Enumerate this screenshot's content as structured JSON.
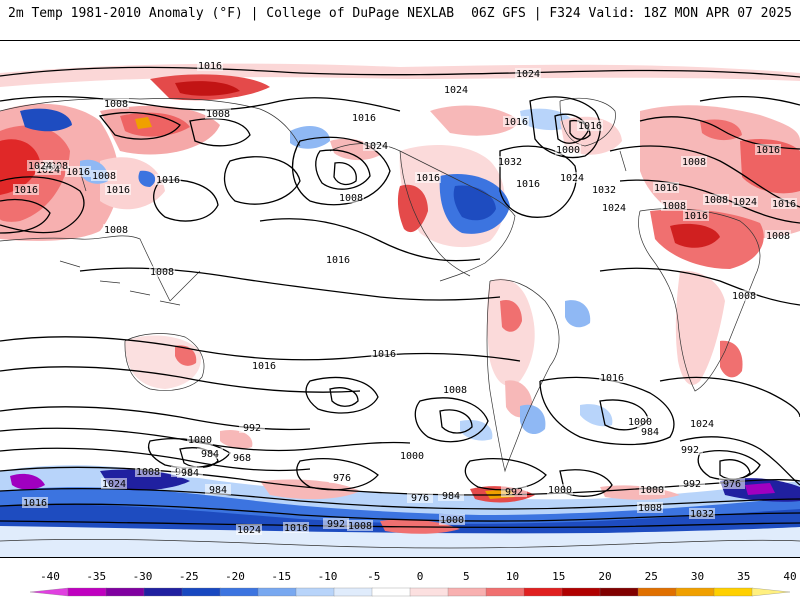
{
  "header": {
    "title_left": "2m Temp 1981-2010 Anomaly (°F) | College of DuPage NEXLAB",
    "title_right": "06Z GFS | F324 Valid: 18Z MON APR 07 2025"
  },
  "colorbar": {
    "tick_labels": [
      "-40",
      "-35",
      "-30",
      "-25",
      "-20",
      "-15",
      "-10",
      "-5",
      "0",
      "5",
      "10",
      "15",
      "20",
      "25",
      "30",
      "35",
      "40"
    ],
    "colors": [
      "#e040e0",
      "#c000c0",
      "#8000a0",
      "#2020a0",
      "#1848c0",
      "#3c74e0",
      "#78a8f0",
      "#b8d4fa",
      "#e0ecfc",
      "#ffffff",
      "#fce0e0",
      "#f8b0b0",
      "#f07070",
      "#e02020",
      "#b00000",
      "#800000",
      "#e07000",
      "#f0a000",
      "#ffd000",
      "#fff080"
    ]
  },
  "map": {
    "isobar_labels": [
      {
        "id": "p1",
        "text": "1016"
      },
      {
        "id": "p2",
        "text": "1024"
      },
      {
        "id": "p3",
        "text": "1008"
      },
      {
        "id": "p4",
        "text": "1008"
      },
      {
        "id": "p5",
        "text": "1024"
      },
      {
        "id": "p6",
        "text": "1016"
      },
      {
        "id": "p7",
        "text": "1024"
      },
      {
        "id": "p8",
        "text": "1016"
      },
      {
        "id": "p9",
        "text": "1016"
      },
      {
        "id": "p10",
        "text": "1000"
      },
      {
        "id": "p11",
        "text": "1032"
      },
      {
        "id": "p12",
        "text": "1024"
      },
      {
        "id": "p13",
        "text": "1032"
      },
      {
        "id": "p14",
        "text": "1016"
      },
      {
        "id": "p15",
        "text": "1016"
      },
      {
        "id": "p16",
        "text": "1024"
      },
      {
        "id": "p17",
        "text": "1016"
      },
      {
        "id": "p18",
        "text": "1008"
      },
      {
        "id": "p19",
        "text": "1016"
      },
      {
        "id": "p20",
        "text": "1008"
      },
      {
        "id": "p21",
        "text": "1016"
      },
      {
        "id": "p22",
        "text": "1008"
      },
      {
        "id": "p23",
        "text": "1024"
      },
      {
        "id": "p24",
        "text": "1016"
      },
      {
        "id": "p25",
        "text": "1008"
      },
      {
        "id": "p26",
        "text": "1016"
      },
      {
        "id": "p27",
        "text": "1016"
      },
      {
        "id": "p28",
        "text": "1008"
      },
      {
        "id": "p29",
        "text": "1008"
      },
      {
        "id": "p30",
        "text": "1016"
      },
      {
        "id": "p31",
        "text": "1008"
      },
      {
        "id": "p32",
        "text": "1016"
      },
      {
        "id": "p33",
        "text": "1008"
      },
      {
        "id": "p34",
        "text": "1016"
      },
      {
        "id": "p35",
        "text": "1024"
      },
      {
        "id": "p36",
        "text": "1024"
      },
      {
        "id": "p37",
        "text": "1008"
      },
      {
        "id": "p38",
        "text": "1016"
      },
      {
        "id": "p39",
        "text": "1008"
      },
      {
        "id": "p40",
        "text": "1016"
      },
      {
        "id": "p41",
        "text": "1000"
      },
      {
        "id": "p42",
        "text": "992"
      },
      {
        "id": "p43",
        "text": "984"
      },
      {
        "id": "p44",
        "text": "968"
      },
      {
        "id": "p45",
        "text": "976"
      },
      {
        "id": "p46",
        "text": "1000"
      },
      {
        "id": "p47",
        "text": "976"
      },
      {
        "id": "p48",
        "text": "984"
      },
      {
        "id": "p49",
        "text": "984"
      },
      {
        "id": "p50",
        "text": "976"
      },
      {
        "id": "p51",
        "text": "984"
      },
      {
        "id": "p52",
        "text": "992"
      },
      {
        "id": "p53",
        "text": "1000"
      },
      {
        "id": "p54",
        "text": "1000"
      },
      {
        "id": "p55",
        "text": "984"
      },
      {
        "id": "p56",
        "text": "992"
      },
      {
        "id": "p57",
        "text": "1024"
      },
      {
        "id": "p58",
        "text": "976"
      },
      {
        "id": "p59",
        "text": "992"
      },
      {
        "id": "p60",
        "text": "1000"
      },
      {
        "id": "p61",
        "text": "1008"
      },
      {
        "id": "p62",
        "text": "1032"
      },
      {
        "id": "p63",
        "text": "1024"
      },
      {
        "id": "p64",
        "text": "1016"
      },
      {
        "id": "p65",
        "text": "992"
      },
      {
        "id": "p66",
        "text": "1008"
      },
      {
        "id": "p67",
        "text": "1000"
      },
      {
        "id": "p68",
        "text": "1008"
      },
      {
        "id": "p69",
        "text": "1016"
      },
      {
        "id": "p70",
        "text": "1024"
      },
      {
        "id": "p71",
        "text": "1008"
      },
      {
        "id": "p72",
        "text": "1016"
      }
    ]
  }
}
